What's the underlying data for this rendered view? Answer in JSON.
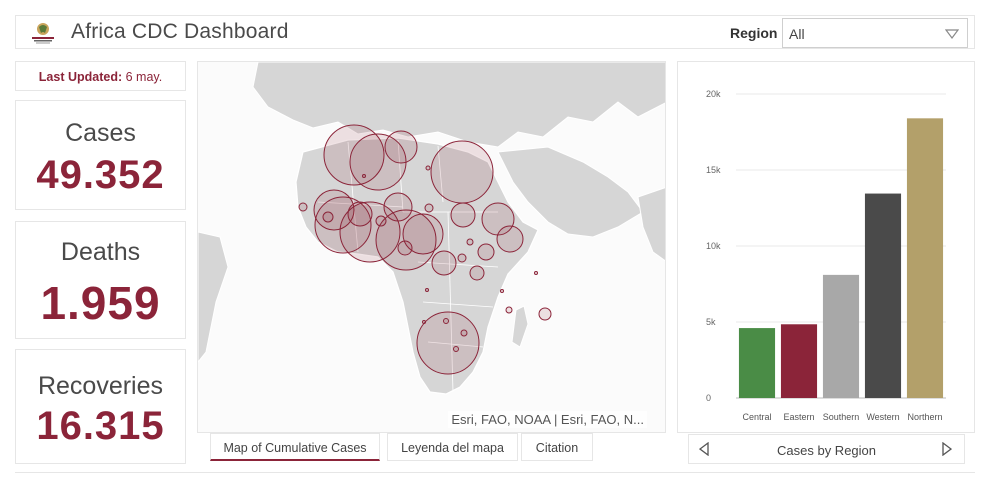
{
  "header": {
    "title": "Africa CDC Dashboard",
    "region_label": "Region",
    "region_value": "All"
  },
  "last_updated": {
    "label": "Last Updated:",
    "value": "6 may."
  },
  "stats": {
    "cases_label": "Cases",
    "cases_value": "49.352",
    "deaths_label": "Deaths",
    "deaths_value": "1.959",
    "recoveries_label": "Recoveries",
    "recoveries_value": "16.315"
  },
  "map": {
    "attribution": "Esri, FAO, NOAA | Esri, FAO, N...",
    "tabs": [
      "Map of Cumulative Cases",
      "Leyenda del mapa",
      "Citation"
    ]
  },
  "colors": {
    "accent": "#8b2439",
    "land": "#d6d6d6",
    "bubble_fill": "rgba(139,36,57,0.13)",
    "bubble_stroke": "#8b2439"
  },
  "chart_nav": {
    "label": "Cases by Region"
  },
  "chart_data": {
    "type": "bar",
    "categories": [
      "Central",
      "Eastern",
      "Southern",
      "Western",
      "Northern"
    ],
    "values": [
      4600,
      4850,
      8100,
      13450,
      18400
    ],
    "colors": [
      "#4a8c46",
      "#8b2439",
      "#a8a8a8",
      "#4a4a4a",
      "#b3a06a"
    ],
    "ylim": [
      0,
      20000
    ],
    "yticks": [
      0,
      5000,
      10000,
      15000,
      20000
    ],
    "ytick_labels": [
      "0",
      "5k",
      "10k",
      "15k",
      "20k"
    ],
    "grid": true,
    "legend": "none"
  }
}
